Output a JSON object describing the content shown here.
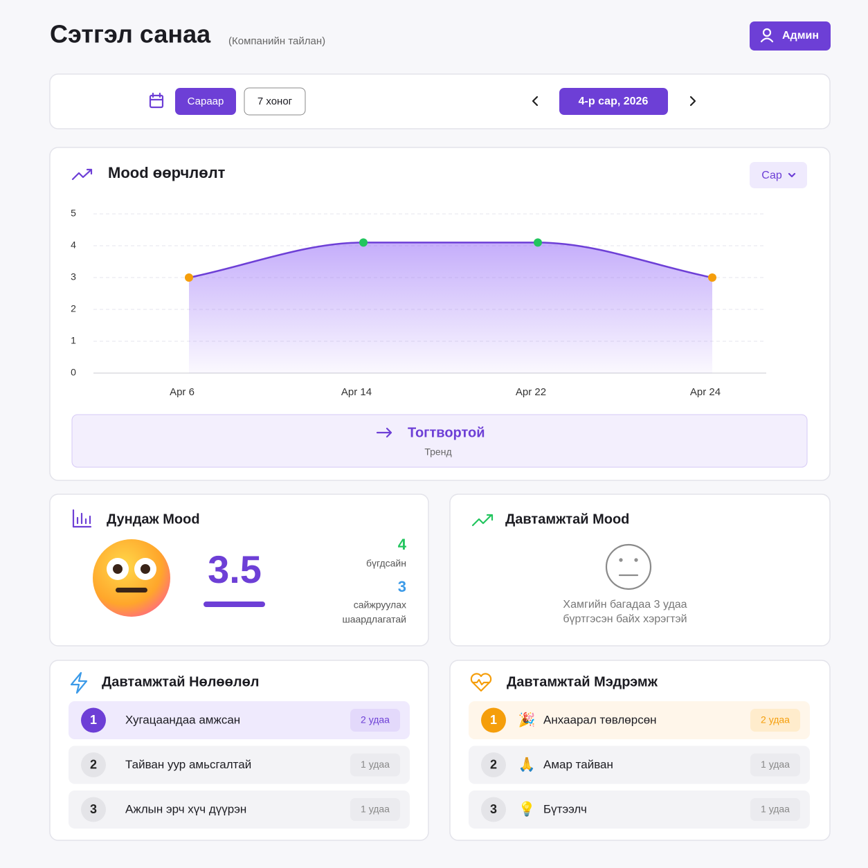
{
  "header": {
    "title": "Сэтгэл санаа",
    "subtitle": "(Компанийн тайлан)",
    "admin_button": "Админ"
  },
  "toolbar": {
    "view_options": [
      "Сараар",
      "7 хоног"
    ],
    "period": "4-р сар, 2026"
  },
  "chart_data": {
    "type": "line",
    "title": "Mood өөрчлөлт",
    "period_select": "Сар",
    "categories": [
      "Apr 6",
      "Apr 14",
      "Apr 22",
      "Apr 24"
    ],
    "values": [
      3,
      4.1,
      4.1,
      3
    ],
    "color": "#6d3fd6",
    "point_colors": [
      "#f59e0b",
      "#22c55e",
      "#22c55e",
      "#f59e0b"
    ],
    "ylim": [
      0,
      5
    ],
    "yticks": [
      0,
      1,
      2,
      3,
      4,
      5
    ],
    "grid": true,
    "trend": {
      "label": "Тогтвортой",
      "caption": "Тренд"
    }
  },
  "average_mood": {
    "title": "Дундаж Mood",
    "value": 3.5,
    "good_count": 4,
    "good_label": "бүгдсайн",
    "improve_count": 3,
    "improve_label": [
      "сайжруулах",
      "шаардлагатай"
    ]
  },
  "frequent_mood": {
    "title": "Давтамжтай Mood",
    "message": [
      "Хамгийн багадаа 3 удаа",
      "бүртгэсэн байх хэрэгтэй"
    ]
  },
  "frequent_influences": {
    "title": "Давтамжтай Нөлөөлөл",
    "items": [
      {
        "rank": 1,
        "label": "Хугацаандаа амжсан",
        "count": "2 удаа"
      },
      {
        "rank": 2,
        "label": "Тайван уур амьсгалтай",
        "count": "1 удаа"
      },
      {
        "rank": 3,
        "label": "Ажлын эрч хүч дүүрэн",
        "count": "1 удаа"
      }
    ]
  },
  "frequent_feelings": {
    "title": "Давтамжтай Мэдрэмж",
    "items": [
      {
        "rank": 1,
        "icon": "🎉",
        "label": "Анхаарал төвлөрсөн",
        "count": "2 удаа"
      },
      {
        "rank": 2,
        "icon": "🙏",
        "label": "Амар тайван",
        "count": "1 удаа"
      },
      {
        "rank": 3,
        "icon": "💡",
        "label": "Бүтээлч",
        "count": "1 удаа"
      }
    ]
  }
}
